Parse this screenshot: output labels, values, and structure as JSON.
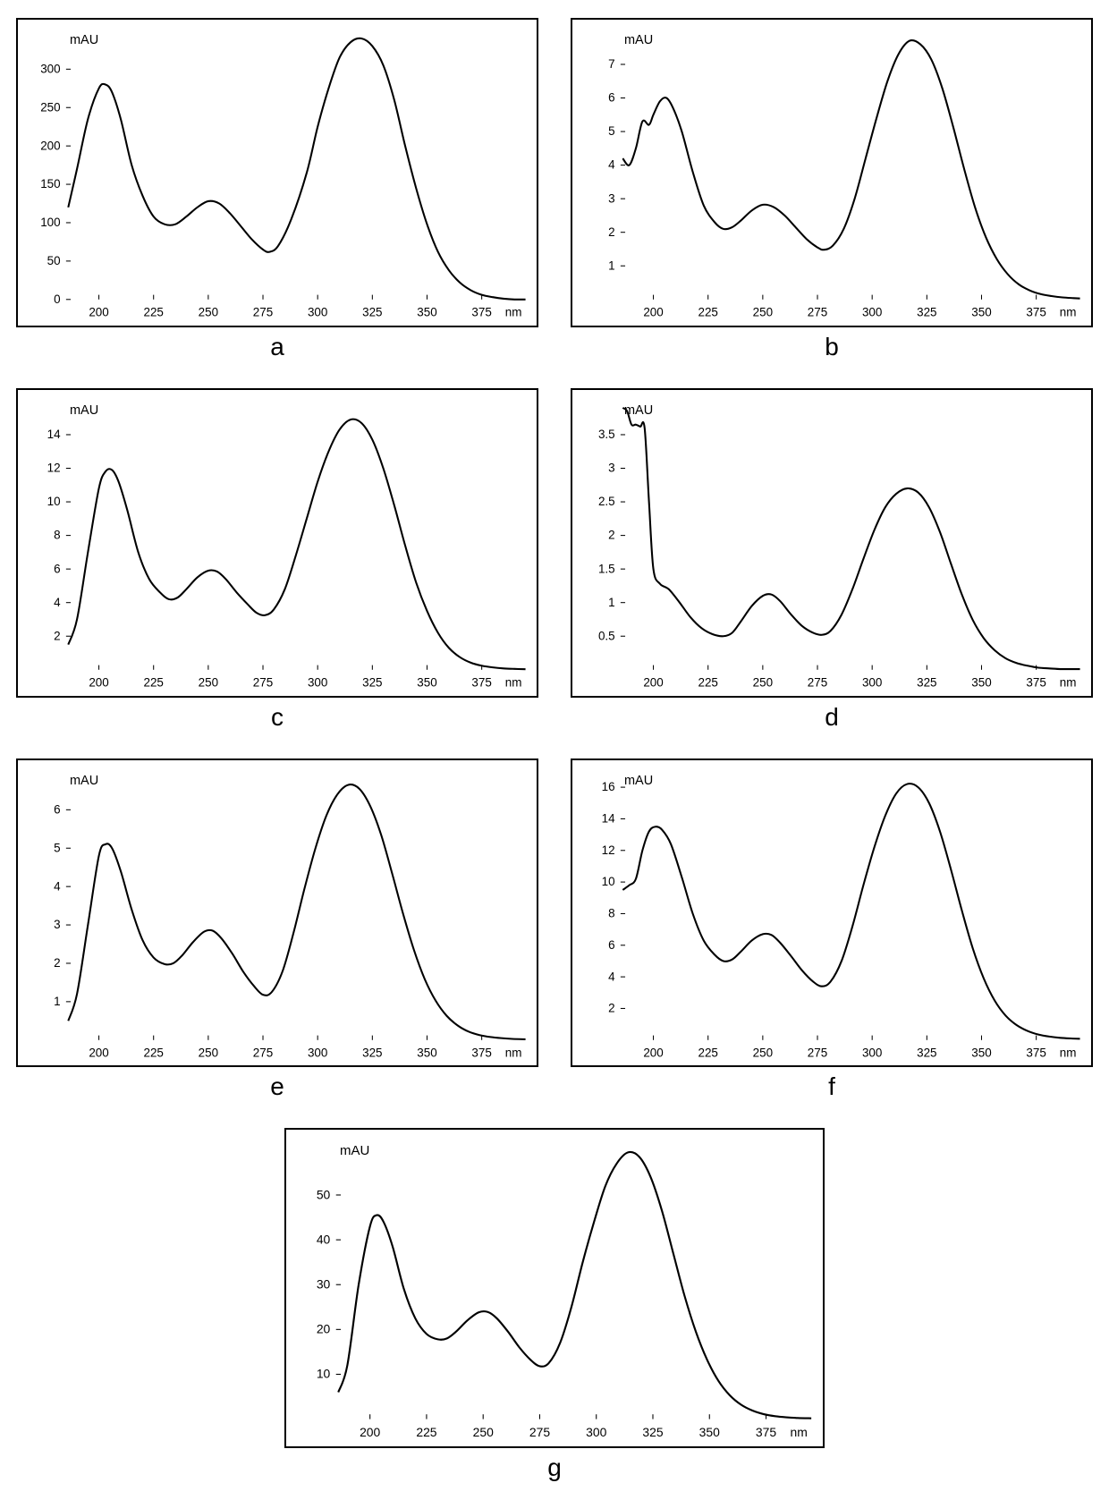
{
  "global": {
    "x_unit": "nm",
    "y_unit": "mAU",
    "background_color": "#ffffff",
    "border_color": "#000000",
    "line_color": "#000000",
    "line_width": 2,
    "tick_length": 5,
    "label_fontsize": 13,
    "panel_label_fontsize": 28,
    "xlim": [
      185,
      395
    ],
    "x_ticks": [
      200,
      225,
      250,
      275,
      300,
      325,
      350,
      375
    ]
  },
  "panels": [
    {
      "id": "a",
      "label": "a",
      "ylim": [
        0,
        350
      ],
      "y_ticks": [
        0,
        50,
        100,
        150,
        200,
        250,
        300
      ],
      "points": [
        [
          186,
          120
        ],
        [
          190,
          170
        ],
        [
          195,
          235
        ],
        [
          200,
          275
        ],
        [
          203,
          280
        ],
        [
          206,
          270
        ],
        [
          210,
          235
        ],
        [
          215,
          175
        ],
        [
          220,
          135
        ],
        [
          225,
          108
        ],
        [
          230,
          98
        ],
        [
          235,
          98
        ],
        [
          240,
          108
        ],
        [
          245,
          120
        ],
        [
          250,
          128
        ],
        [
          255,
          125
        ],
        [
          260,
          112
        ],
        [
          265,
          95
        ],
        [
          270,
          78
        ],
        [
          275,
          65
        ],
        [
          278,
          62
        ],
        [
          282,
          70
        ],
        [
          288,
          105
        ],
        [
          295,
          165
        ],
        [
          300,
          225
        ],
        [
          305,
          275
        ],
        [
          310,
          315
        ],
        [
          315,
          335
        ],
        [
          320,
          340
        ],
        [
          325,
          330
        ],
        [
          330,
          305
        ],
        [
          335,
          260
        ],
        [
          340,
          200
        ],
        [
          345,
          145
        ],
        [
          350,
          98
        ],
        [
          355,
          62
        ],
        [
          360,
          38
        ],
        [
          365,
          22
        ],
        [
          370,
          12
        ],
        [
          375,
          6
        ],
        [
          380,
          3
        ],
        [
          385,
          1
        ],
        [
          390,
          0
        ],
        [
          395,
          0
        ]
      ]
    },
    {
      "id": "b",
      "label": "b",
      "ylim": [
        0,
        8
      ],
      "y_ticks": [
        1,
        2,
        3,
        4,
        5,
        6,
        7
      ],
      "points": [
        [
          186,
          4.2
        ],
        [
          189,
          4.0
        ],
        [
          192,
          4.5
        ],
        [
          195,
          5.3
        ],
        [
          198,
          5.2
        ],
        [
          200,
          5.5
        ],
        [
          203,
          5.9
        ],
        [
          206,
          6.0
        ],
        [
          209,
          5.7
        ],
        [
          213,
          5.0
        ],
        [
          218,
          3.8
        ],
        [
          223,
          2.8
        ],
        [
          228,
          2.3
        ],
        [
          232,
          2.1
        ],
        [
          236,
          2.15
        ],
        [
          240,
          2.35
        ],
        [
          245,
          2.65
        ],
        [
          250,
          2.82
        ],
        [
          255,
          2.75
        ],
        [
          260,
          2.5
        ],
        [
          265,
          2.15
        ],
        [
          270,
          1.8
        ],
        [
          275,
          1.55
        ],
        [
          278,
          1.48
        ],
        [
          282,
          1.6
        ],
        [
          287,
          2.1
        ],
        [
          292,
          3.0
        ],
        [
          297,
          4.2
        ],
        [
          302,
          5.4
        ],
        [
          307,
          6.5
        ],
        [
          312,
          7.3
        ],
        [
          317,
          7.7
        ],
        [
          322,
          7.6
        ],
        [
          327,
          7.15
        ],
        [
          332,
          6.3
        ],
        [
          337,
          5.15
        ],
        [
          342,
          3.9
        ],
        [
          347,
          2.75
        ],
        [
          352,
          1.85
        ],
        [
          357,
          1.2
        ],
        [
          362,
          0.75
        ],
        [
          367,
          0.45
        ],
        [
          372,
          0.27
        ],
        [
          377,
          0.16
        ],
        [
          382,
          0.1
        ],
        [
          387,
          0.06
        ],
        [
          392,
          0.04
        ],
        [
          395,
          0.03
        ]
      ]
    },
    {
      "id": "c",
      "label": "c",
      "ylim": [
        0,
        16
      ],
      "y_ticks": [
        2,
        4,
        6,
        8,
        10,
        12,
        14
      ],
      "points": [
        [
          186,
          1.5
        ],
        [
          190,
          3.0
        ],
        [
          195,
          7.0
        ],
        [
          200,
          10.8
        ],
        [
          203,
          11.8
        ],
        [
          206,
          11.9
        ],
        [
          209,
          11.2
        ],
        [
          213,
          9.5
        ],
        [
          218,
          7.0
        ],
        [
          223,
          5.4
        ],
        [
          228,
          4.6
        ],
        [
          232,
          4.2
        ],
        [
          236,
          4.3
        ],
        [
          240,
          4.8
        ],
        [
          245,
          5.5
        ],
        [
          250,
          5.9
        ],
        [
          254,
          5.85
        ],
        [
          258,
          5.4
        ],
        [
          263,
          4.6
        ],
        [
          268,
          3.9
        ],
        [
          272,
          3.4
        ],
        [
          276,
          3.25
        ],
        [
          280,
          3.6
        ],
        [
          285,
          4.8
        ],
        [
          290,
          6.8
        ],
        [
          295,
          9.0
        ],
        [
          300,
          11.2
        ],
        [
          305,
          13.0
        ],
        [
          310,
          14.3
        ],
        [
          315,
          14.9
        ],
        [
          320,
          14.7
        ],
        [
          325,
          13.7
        ],
        [
          330,
          12.0
        ],
        [
          335,
          9.8
        ],
        [
          340,
          7.4
        ],
        [
          345,
          5.2
        ],
        [
          350,
          3.5
        ],
        [
          355,
          2.2
        ],
        [
          360,
          1.3
        ],
        [
          365,
          0.75
        ],
        [
          370,
          0.42
        ],
        [
          375,
          0.24
        ],
        [
          380,
          0.14
        ],
        [
          385,
          0.08
        ],
        [
          390,
          0.05
        ],
        [
          395,
          0.03
        ]
      ]
    },
    {
      "id": "d",
      "label": "d",
      "ylim": [
        0,
        4
      ],
      "y_ticks": [
        0.5,
        1,
        1.5,
        2,
        2.5,
        3,
        3.5
      ],
      "points": [
        [
          186,
          3.9
        ],
        [
          188,
          3.85
        ],
        [
          190,
          3.65
        ],
        [
          192,
          3.65
        ],
        [
          194,
          3.62
        ],
        [
          196,
          3.6
        ],
        [
          198,
          2.5
        ],
        [
          200,
          1.5
        ],
        [
          203,
          1.28
        ],
        [
          207,
          1.2
        ],
        [
          212,
          1.0
        ],
        [
          217,
          0.78
        ],
        [
          222,
          0.62
        ],
        [
          227,
          0.53
        ],
        [
          232,
          0.5
        ],
        [
          236,
          0.55
        ],
        [
          240,
          0.72
        ],
        [
          245,
          0.95
        ],
        [
          250,
          1.1
        ],
        [
          254,
          1.12
        ],
        [
          258,
          1.02
        ],
        [
          263,
          0.82
        ],
        [
          268,
          0.65
        ],
        [
          273,
          0.55
        ],
        [
          277,
          0.52
        ],
        [
          281,
          0.58
        ],
        [
          286,
          0.82
        ],
        [
          291,
          1.2
        ],
        [
          296,
          1.65
        ],
        [
          301,
          2.08
        ],
        [
          306,
          2.42
        ],
        [
          311,
          2.62
        ],
        [
          316,
          2.7
        ],
        [
          321,
          2.64
        ],
        [
          326,
          2.42
        ],
        [
          331,
          2.05
        ],
        [
          336,
          1.58
        ],
        [
          341,
          1.12
        ],
        [
          346,
          0.74
        ],
        [
          351,
          0.47
        ],
        [
          356,
          0.29
        ],
        [
          361,
          0.17
        ],
        [
          366,
          0.1
        ],
        [
          371,
          0.06
        ],
        [
          376,
          0.03
        ],
        [
          381,
          0.02
        ],
        [
          386,
          0.01
        ],
        [
          391,
          0.01
        ],
        [
          395,
          0.01
        ]
      ]
    },
    {
      "id": "e",
      "label": "e",
      "ylim": [
        0,
        7
      ],
      "y_ticks": [
        1,
        2,
        3,
        4,
        5,
        6
      ],
      "points": [
        [
          186,
          0.5
        ],
        [
          190,
          1.2
        ],
        [
          195,
          3.0
        ],
        [
          200,
          4.8
        ],
        [
          203,
          5.1
        ],
        [
          206,
          5.0
        ],
        [
          210,
          4.4
        ],
        [
          215,
          3.4
        ],
        [
          220,
          2.6
        ],
        [
          225,
          2.15
        ],
        [
          230,
          1.98
        ],
        [
          234,
          2.0
        ],
        [
          238,
          2.2
        ],
        [
          243,
          2.55
        ],
        [
          248,
          2.82
        ],
        [
          252,
          2.85
        ],
        [
          256,
          2.65
        ],
        [
          261,
          2.25
        ],
        [
          266,
          1.78
        ],
        [
          271,
          1.4
        ],
        [
          275,
          1.18
        ],
        [
          279,
          1.25
        ],
        [
          284,
          1.8
        ],
        [
          289,
          2.8
        ],
        [
          294,
          3.95
        ],
        [
          299,
          5.0
        ],
        [
          304,
          5.85
        ],
        [
          309,
          6.4
        ],
        [
          314,
          6.65
        ],
        [
          319,
          6.55
        ],
        [
          324,
          6.1
        ],
        [
          329,
          5.35
        ],
        [
          334,
          4.35
        ],
        [
          339,
          3.3
        ],
        [
          344,
          2.35
        ],
        [
          349,
          1.58
        ],
        [
          354,
          1.02
        ],
        [
          359,
          0.63
        ],
        [
          364,
          0.38
        ],
        [
          369,
          0.22
        ],
        [
          374,
          0.13
        ],
        [
          379,
          0.08
        ],
        [
          384,
          0.05
        ],
        [
          389,
          0.03
        ],
        [
          395,
          0.02
        ]
      ]
    },
    {
      "id": "f",
      "label": "f",
      "ylim": [
        0,
        17
      ],
      "y_ticks": [
        2,
        4,
        6,
        8,
        10,
        12,
        14,
        16
      ],
      "points": [
        [
          186,
          9.5
        ],
        [
          189,
          9.8
        ],
        [
          192,
          10.2
        ],
        [
          195,
          12.0
        ],
        [
          198,
          13.2
        ],
        [
          201,
          13.5
        ],
        [
          204,
          13.3
        ],
        [
          208,
          12.4
        ],
        [
          213,
          10.3
        ],
        [
          218,
          8.0
        ],
        [
          223,
          6.3
        ],
        [
          228,
          5.4
        ],
        [
          232,
          5.0
        ],
        [
          236,
          5.1
        ],
        [
          240,
          5.6
        ],
        [
          245,
          6.3
        ],
        [
          250,
          6.7
        ],
        [
          254,
          6.65
        ],
        [
          258,
          6.15
        ],
        [
          263,
          5.3
        ],
        [
          268,
          4.4
        ],
        [
          273,
          3.7
        ],
        [
          277,
          3.4
        ],
        [
          281,
          3.7
        ],
        [
          286,
          5.0
        ],
        [
          291,
          7.2
        ],
        [
          296,
          9.8
        ],
        [
          301,
          12.2
        ],
        [
          306,
          14.2
        ],
        [
          311,
          15.6
        ],
        [
          316,
          16.2
        ],
        [
          321,
          16.0
        ],
        [
          326,
          15.0
        ],
        [
          331,
          13.2
        ],
        [
          336,
          10.8
        ],
        [
          341,
          8.2
        ],
        [
          346,
          5.8
        ],
        [
          351,
          3.9
        ],
        [
          356,
          2.5
        ],
        [
          361,
          1.55
        ],
        [
          366,
          0.95
        ],
        [
          371,
          0.58
        ],
        [
          376,
          0.35
        ],
        [
          381,
          0.22
        ],
        [
          386,
          0.14
        ],
        [
          391,
          0.1
        ],
        [
          395,
          0.08
        ]
      ]
    },
    {
      "id": "g",
      "label": "g",
      "ylim": [
        0,
        62
      ],
      "y_ticks": [
        10,
        20,
        30,
        40,
        50
      ],
      "points": [
        [
          186,
          6
        ],
        [
          190,
          12
        ],
        [
          195,
          30
        ],
        [
          200,
          43
        ],
        [
          203,
          45.5
        ],
        [
          206,
          44
        ],
        [
          210,
          38.5
        ],
        [
          215,
          29
        ],
        [
          220,
          22.5
        ],
        [
          225,
          19
        ],
        [
          230,
          17.8
        ],
        [
          234,
          18
        ],
        [
          238,
          19.5
        ],
        [
          243,
          22
        ],
        [
          248,
          23.8
        ],
        [
          252,
          23.9
        ],
        [
          256,
          22.5
        ],
        [
          261,
          19.5
        ],
        [
          266,
          16
        ],
        [
          271,
          13.2
        ],
        [
          275,
          11.8
        ],
        [
          279,
          12.5
        ],
        [
          284,
          17
        ],
        [
          289,
          25
        ],
        [
          294,
          35
        ],
        [
          299,
          44
        ],
        [
          304,
          52
        ],
        [
          309,
          57
        ],
        [
          314,
          59.5
        ],
        [
          319,
          58.5
        ],
        [
          324,
          54
        ],
        [
          329,
          46.5
        ],
        [
          334,
          37
        ],
        [
          339,
          27.5
        ],
        [
          344,
          19.5
        ],
        [
          349,
          13.2
        ],
        [
          354,
          8.5
        ],
        [
          359,
          5.3
        ],
        [
          364,
          3.2
        ],
        [
          369,
          1.9
        ],
        [
          374,
          1.1
        ],
        [
          379,
          0.65
        ],
        [
          384,
          0.4
        ],
        [
          389,
          0.25
        ],
        [
          395,
          0.18
        ]
      ]
    }
  ]
}
